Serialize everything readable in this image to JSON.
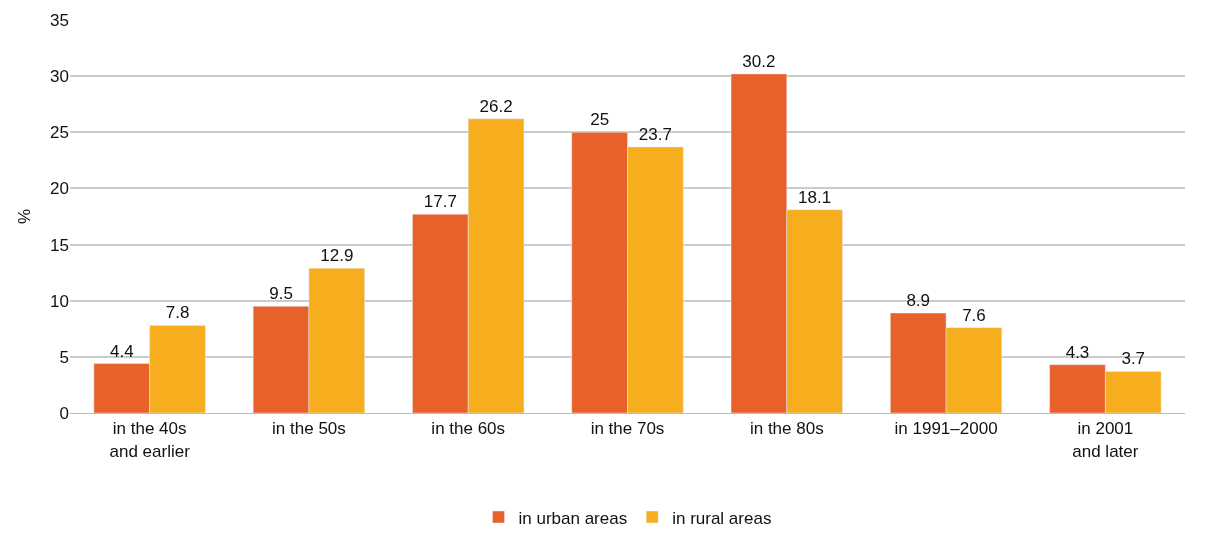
{
  "chart_data": {
    "type": "bar",
    "ylabel": "%",
    "categories": [
      "in the 40s\nand earlier",
      "in the 50s",
      "in the 60s",
      "in the 70s",
      "in the 80s",
      "in 1991–2000",
      "in 2001\nand later"
    ],
    "series": [
      {
        "name": "in urban areas",
        "color": "#e8612a",
        "values": [
          4.4,
          9.5,
          17.7,
          25,
          30.2,
          8.9,
          4.3
        ]
      },
      {
        "name": "in rural areas",
        "color": "#f7ae1e",
        "values": [
          7.8,
          12.9,
          26.2,
          23.7,
          18.1,
          7.6,
          3.7
        ]
      }
    ],
    "ylim": [
      0,
      35
    ],
    "yticks": [
      0,
      5,
      10,
      15,
      20,
      25,
      30,
      35
    ],
    "grid": "y",
    "legend": "bottom",
    "data_labels": true
  }
}
